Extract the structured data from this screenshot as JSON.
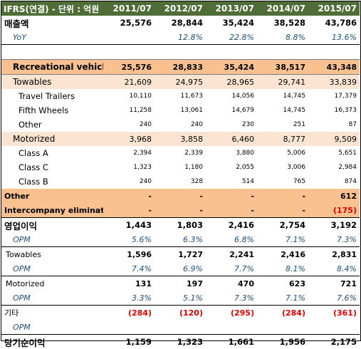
{
  "header": {
    "label": "IFRS(연결) - 단위 : 억원",
    "years": [
      "2011/07",
      "2012/07",
      "2013/07",
      "2014/07",
      "2015/07"
    ]
  },
  "rows": {
    "sales": {
      "label": "매출액",
      "values": [
        "25,576",
        "28,844",
        "35,424",
        "38,528",
        "43,786"
      ]
    },
    "yoy": {
      "label": "YoY",
      "values": [
        "",
        "12.8%",
        "22.8%",
        "8.8%",
        "13.6%"
      ]
    },
    "rv": {
      "label": "Recreational vehicles",
      "values": [
        "25,576",
        "28,833",
        "35,424",
        "38,517",
        "43,348"
      ]
    },
    "towables": {
      "label": "Towables",
      "values": [
        "21,609",
        "24,975",
        "28,965",
        "29,741",
        "33,839"
      ]
    },
    "travel_trailers": {
      "label": "Travel Trailers",
      "values": [
        "10,110",
        "11,673",
        "14,056",
        "14,745",
        "17,379"
      ]
    },
    "fifth_wheels": {
      "label": "Fifth Wheels",
      "values": [
        "11,258",
        "13,061",
        "14,679",
        "14,745",
        "16,373"
      ]
    },
    "tow_other": {
      "label": "Other",
      "values": [
        "240",
        "240",
        "230",
        "251",
        "87"
      ]
    },
    "motorized": {
      "label": "Motorized",
      "values": [
        "3,968",
        "3,858",
        "6,460",
        "8,777",
        "9,509"
      ]
    },
    "class_a": {
      "label": "Class A",
      "values": [
        "2,394",
        "2,339",
        "3,880",
        "5,006",
        "5,651"
      ]
    },
    "class_c": {
      "label": "Class C",
      "values": [
        "1,323",
        "1,180",
        "2,055",
        "3,006",
        "2,984"
      ]
    },
    "class_b": {
      "label": "Class B",
      "values": [
        "240",
        "328",
        "514",
        "765",
        "874"
      ]
    },
    "other": {
      "label": "Other",
      "values": [
        "-",
        "-",
        "-",
        "-",
        "612"
      ]
    },
    "interco": {
      "label": "Intercompany eliminations",
      "values": [
        "-",
        "-",
        "-",
        "-",
        "(175)"
      ]
    },
    "op_income": {
      "label": "영업이익",
      "values": [
        "1,443",
        "1,803",
        "2,416",
        "2,754",
        "3,192"
      ]
    },
    "opm1": {
      "label": "OPM",
      "values": [
        "5.6%",
        "6.3%",
        "6.8%",
        "7.1%",
        "7.3%"
      ]
    },
    "tow_op": {
      "label": "Towables",
      "values": [
        "1,596",
        "1,727",
        "2,241",
        "2,416",
        "2,831"
      ]
    },
    "opm2": {
      "label": "OPM",
      "values": [
        "7.4%",
        "6.9%",
        "7.7%",
        "8.1%",
        "8.4%"
      ]
    },
    "mot_op": {
      "label": "Motorized",
      "values": [
        "131",
        "197",
        "470",
        "623",
        "721"
      ]
    },
    "opm3": {
      "label": "OPM",
      "values": [
        "3.3%",
        "5.1%",
        "7.3%",
        "7.1%",
        "7.6%"
      ]
    },
    "etc": {
      "label": "기타",
      "values": [
        "(284)",
        "(120)",
        "(295)",
        "(284)",
        "(361)"
      ]
    },
    "opm4": {
      "label": "OPM",
      "values": [
        "",
        "",
        "",
        "",
        ""
      ]
    },
    "net_income": {
      "label": "당기순이익",
      "values": [
        "1,159",
        "1,323",
        "1,661",
        "1,956",
        "2,175"
      ]
    }
  },
  "colors": {
    "header_bg": "#4f6d36",
    "rv_bg": "#f9c18f",
    "towables_bg": "#fbe5d2",
    "negative": "#e00000",
    "italic_text": "#1f4e79"
  }
}
